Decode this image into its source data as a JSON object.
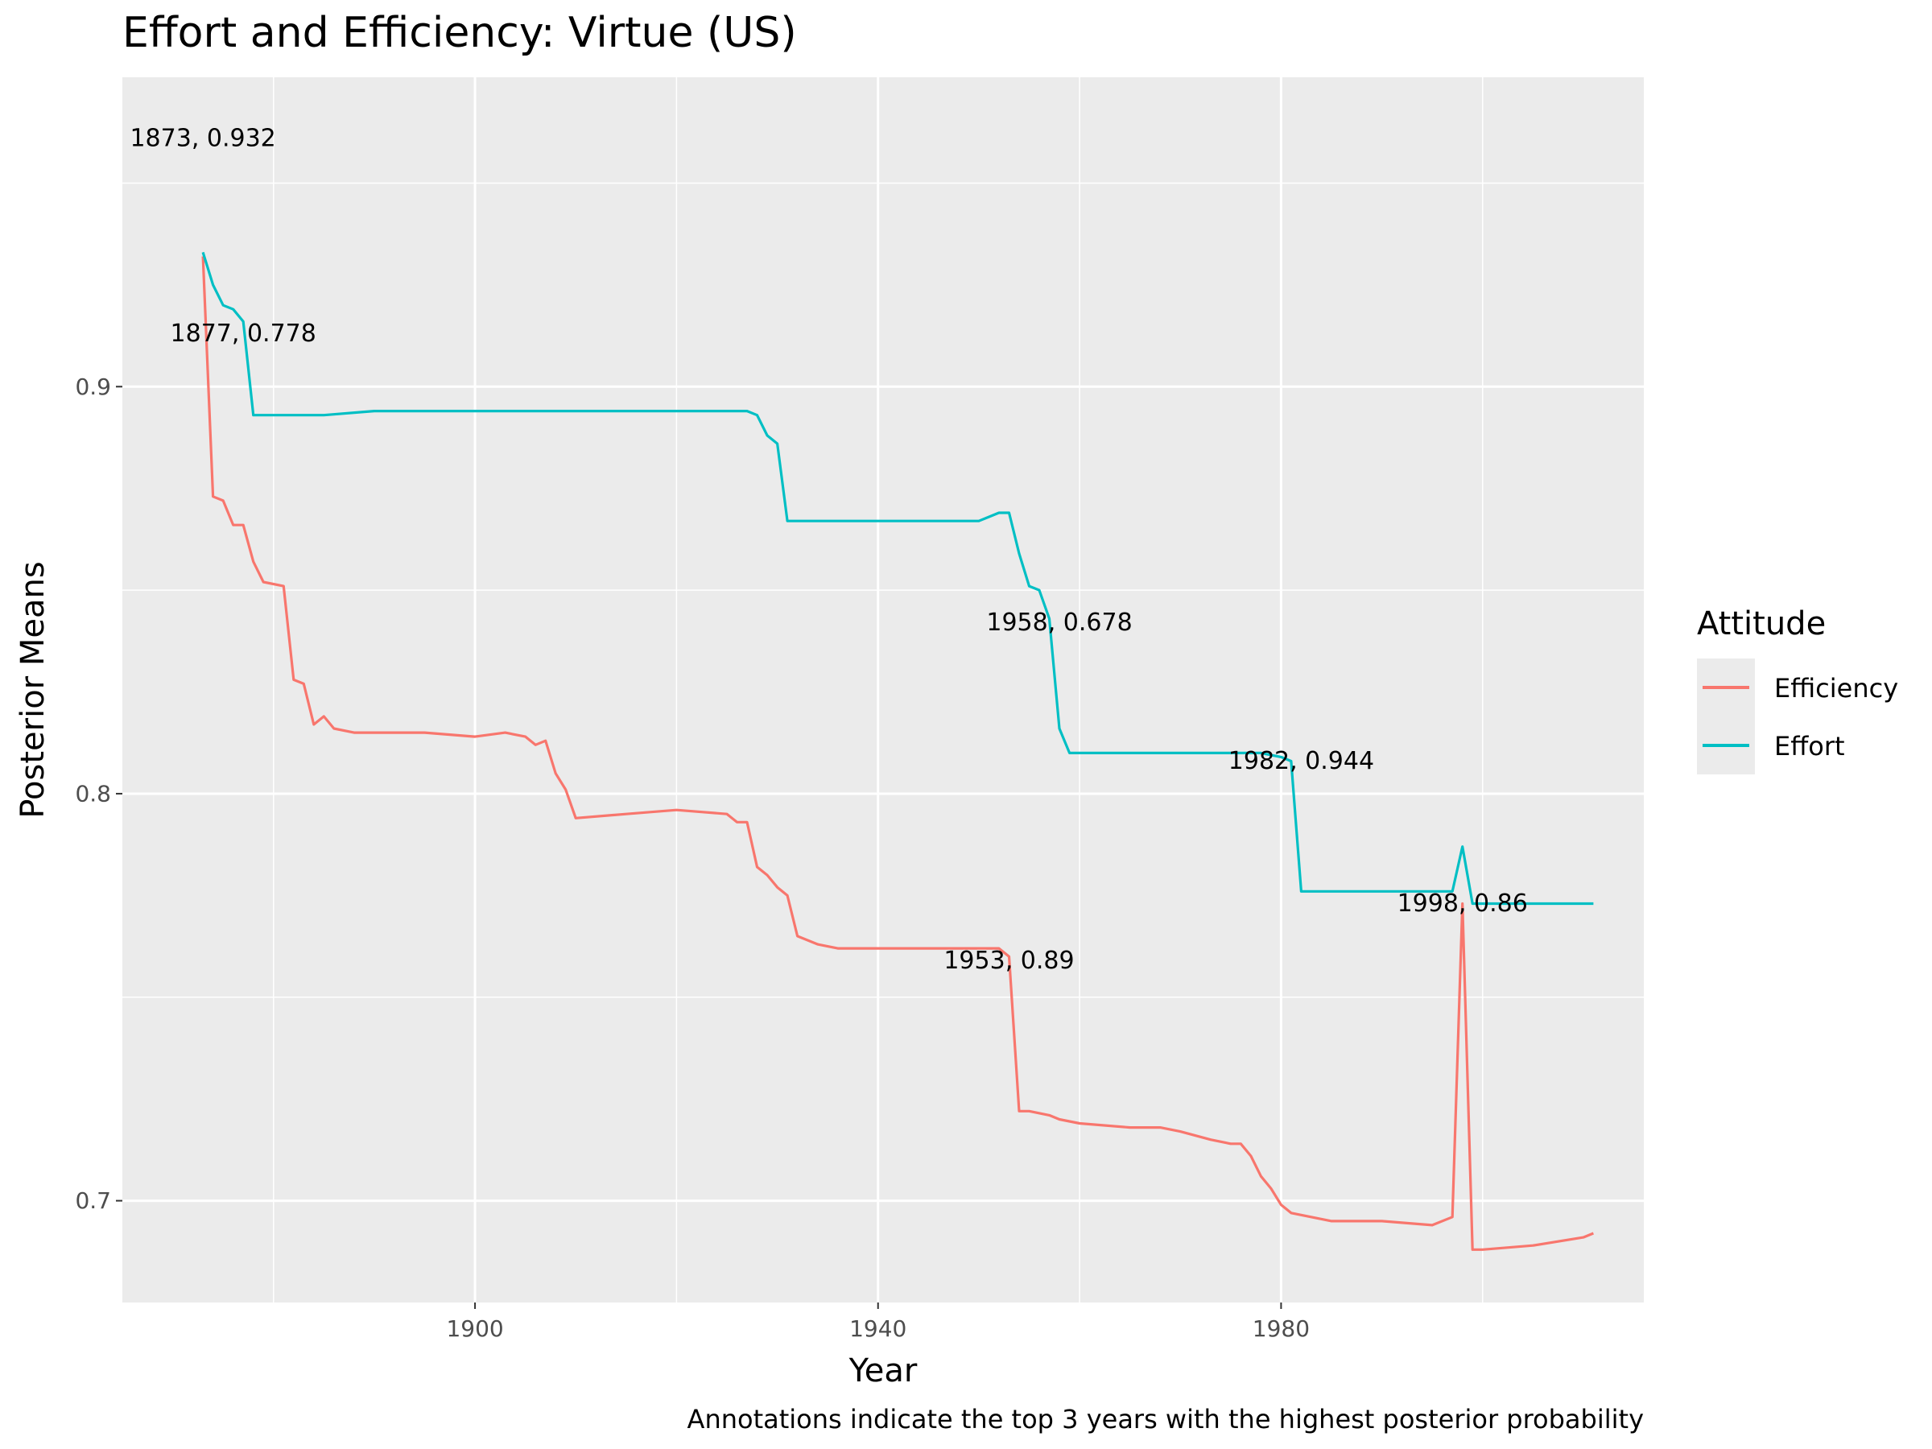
{
  "chart_data": {
    "type": "line",
    "title": "Effort and Efficiency: Virtue (US)",
    "xlabel": "Year",
    "ylabel": "Posterior Means",
    "caption": "Annotations indicate the top 3 years with the highest posterior probability",
    "xlim": [
      1865,
      2016
    ],
    "ylim": [
      0.675,
      0.976
    ],
    "x_ticks": [
      1900,
      1940,
      1980
    ],
    "x_tick_labels": [
      "1900",
      "1940",
      "1980"
    ],
    "y_ticks": [
      0.7,
      0.8,
      0.9
    ],
    "y_tick_labels": [
      "0.7",
      "0.8",
      "0.9"
    ],
    "grid": true,
    "legend": {
      "title": "Attitude",
      "position": "right"
    },
    "series": [
      {
        "name": "Efficiency",
        "color": "#F8766D",
        "x": [
          1873,
          1874,
          1875,
          1876,
          1877,
          1878,
          1879,
          1881,
          1882,
          1883,
          1884,
          1885,
          1886,
          1888,
          1890,
          1895,
          1900,
          1903,
          1905,
          1906,
          1907,
          1908,
          1909,
          1910,
          1915,
          1920,
          1925,
          1926,
          1927,
          1928,
          1929,
          1930,
          1931,
          1932,
          1934,
          1936,
          1940,
          1945,
          1950,
          1952,
          1953,
          1954,
          1955,
          1957,
          1958,
          1960,
          1965,
          1968,
          1970,
          1973,
          1975,
          1976,
          1977,
          1978,
          1979,
          1980,
          1981,
          1985,
          1990,
          1995,
          1997,
          1998,
          1999,
          2000,
          2005,
          2010,
          2011
        ],
        "y": [
          0.932,
          0.873,
          0.872,
          0.866,
          0.866,
          0.857,
          0.852,
          0.851,
          0.828,
          0.827,
          0.817,
          0.819,
          0.816,
          0.815,
          0.815,
          0.815,
          0.814,
          0.815,
          0.814,
          0.812,
          0.813,
          0.805,
          0.801,
          0.794,
          0.795,
          0.796,
          0.795,
          0.793,
          0.793,
          0.782,
          0.78,
          0.777,
          0.775,
          0.765,
          0.763,
          0.762,
          0.762,
          0.762,
          0.762,
          0.762,
          0.76,
          0.722,
          0.722,
          0.721,
          0.72,
          0.719,
          0.718,
          0.718,
          0.717,
          0.715,
          0.714,
          0.714,
          0.711,
          0.706,
          0.703,
          0.699,
          0.697,
          0.695,
          0.695,
          0.694,
          0.696,
          0.773,
          0.688,
          0.688,
          0.689,
          0.691,
          0.692
        ]
      },
      {
        "name": "Effort",
        "color": "#00BFC4",
        "x": [
          1873,
          1874,
          1875,
          1876,
          1877,
          1878,
          1879,
          1880,
          1885,
          1890,
          1900,
          1910,
          1920,
          1925,
          1927,
          1928,
          1929,
          1930,
          1931,
          1932,
          1934,
          1936,
          1940,
          1945,
          1948,
          1950,
          1951,
          1952,
          1953,
          1954,
          1955,
          1956,
          1957,
          1958,
          1959,
          1960,
          1961,
          1965,
          1970,
          1975,
          1978,
          1980,
          1981,
          1982,
          1983,
          1985,
          1990,
          1995,
          1997,
          1998,
          1999,
          2000,
          2005,
          2010,
          2011
        ],
        "y": [
          0.933,
          0.925,
          0.92,
          0.919,
          0.916,
          0.893,
          0.893,
          0.893,
          0.893,
          0.894,
          0.894,
          0.894,
          0.894,
          0.894,
          0.894,
          0.893,
          0.888,
          0.886,
          0.867,
          0.867,
          0.867,
          0.867,
          0.867,
          0.867,
          0.867,
          0.867,
          0.868,
          0.869,
          0.869,
          0.859,
          0.851,
          0.85,
          0.843,
          0.816,
          0.81,
          0.81,
          0.81,
          0.81,
          0.81,
          0.81,
          0.81,
          0.809,
          0.808,
          0.776,
          0.776,
          0.776,
          0.776,
          0.776,
          0.776,
          0.787,
          0.773,
          0.773,
          0.773,
          0.773,
          0.773
        ]
      }
    ],
    "annotations": [
      {
        "text": "1873, 0.932",
        "x": 1873,
        "y": 0.961
      },
      {
        "text": "1877, 0.778",
        "x": 1877,
        "y": 0.913
      },
      {
        "text": "1958, 0.678",
        "x": 1958,
        "y": 0.842
      },
      {
        "text": "1982, 0.944",
        "x": 1982,
        "y": 0.808
      },
      {
        "text": "1998, 0.86",
        "x": 1998,
        "y": 0.773
      },
      {
        "text": "1953, 0.89",
        "x": 1953,
        "y": 0.759
      }
    ]
  }
}
